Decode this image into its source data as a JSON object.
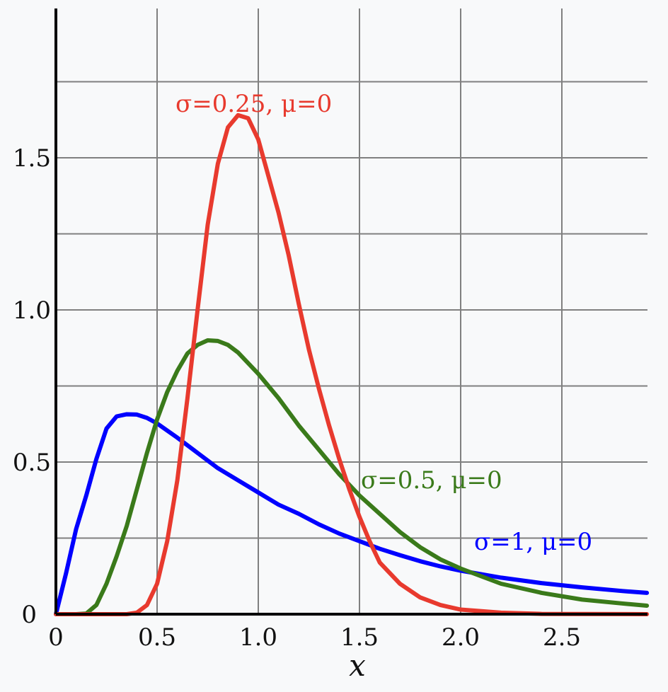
{
  "chart_data": {
    "type": "line",
    "title": "",
    "xlabel": "x",
    "ylabel": "",
    "xlim": [
      0,
      2.92
    ],
    "ylim": [
      0,
      1.98
    ],
    "x_ticks": [
      0,
      0.5,
      1.0,
      1.5,
      2.0,
      2.5
    ],
    "x_tick_labels": [
      "0",
      "0.5",
      "1.0",
      "1.5",
      "2.0",
      "2.5"
    ],
    "y_ticks": [
      0,
      0.5,
      1.0,
      1.5
    ],
    "y_tick_labels": [
      "0",
      "0.5",
      "1.0",
      "1.5"
    ],
    "grid": true,
    "series": [
      {
        "name": "σ=1, μ=0",
        "color": "#0000ff",
        "x": [
          0,
          0.05,
          0.1,
          0.15,
          0.2,
          0.25,
          0.3,
          0.35,
          0.4,
          0.45,
          0.5,
          0.6,
          0.7,
          0.8,
          0.9,
          1.0,
          1.1,
          1.2,
          1.3,
          1.4,
          1.5,
          1.6,
          1.7,
          1.8,
          1.9,
          2.0,
          2.2,
          2.4,
          2.6,
          2.8,
          2.92
        ],
        "values": [
          0,
          0.134,
          0.28,
          0.39,
          0.51,
          0.61,
          0.65,
          0.657,
          0.656,
          0.645,
          0.627,
          0.58,
          0.53,
          0.48,
          0.44,
          0.4,
          0.36,
          0.33,
          0.295,
          0.265,
          0.24,
          0.215,
          0.194,
          0.174,
          0.157,
          0.143,
          0.12,
          0.102,
          0.088,
          0.076,
          0.07
        ]
      },
      {
        "name": "σ=0.5, μ=0",
        "color": "#3a7a1a",
        "x": [
          0,
          0.1,
          0.15,
          0.2,
          0.25,
          0.3,
          0.35,
          0.4,
          0.45,
          0.5,
          0.55,
          0.6,
          0.65,
          0.7,
          0.75,
          0.8,
          0.85,
          0.9,
          1.0,
          1.1,
          1.2,
          1.3,
          1.4,
          1.5,
          1.6,
          1.7,
          1.8,
          1.9,
          2.0,
          2.2,
          2.4,
          2.6,
          2.8,
          2.92
        ],
        "values": [
          0,
          0,
          0.002,
          0.03,
          0.1,
          0.19,
          0.29,
          0.41,
          0.53,
          0.64,
          0.73,
          0.8,
          0.857,
          0.885,
          0.9,
          0.898,
          0.885,
          0.86,
          0.79,
          0.71,
          0.62,
          0.54,
          0.46,
          0.39,
          0.33,
          0.27,
          0.22,
          0.18,
          0.15,
          0.1,
          0.07,
          0.048,
          0.035,
          0.028
        ]
      },
      {
        "name": "σ=0.25, μ=0",
        "color": "#e83a2e",
        "x": [
          0,
          0.35,
          0.4,
          0.45,
          0.5,
          0.55,
          0.6,
          0.65,
          0.7,
          0.75,
          0.8,
          0.85,
          0.9,
          0.95,
          1.0,
          1.05,
          1.1,
          1.15,
          1.2,
          1.25,
          1.3,
          1.35,
          1.4,
          1.45,
          1.5,
          1.55,
          1.6,
          1.7,
          1.8,
          1.9,
          2.0,
          2.2,
          2.4,
          2.92
        ],
        "values": [
          0,
          0,
          0.005,
          0.03,
          0.1,
          0.24,
          0.44,
          0.71,
          1.0,
          1.28,
          1.48,
          1.6,
          1.64,
          1.63,
          1.56,
          1.44,
          1.32,
          1.18,
          1.02,
          0.87,
          0.74,
          0.62,
          0.51,
          0.41,
          0.32,
          0.24,
          0.17,
          0.1,
          0.055,
          0.03,
          0.015,
          0.005,
          0.001,
          0
        ]
      }
    ]
  }
}
